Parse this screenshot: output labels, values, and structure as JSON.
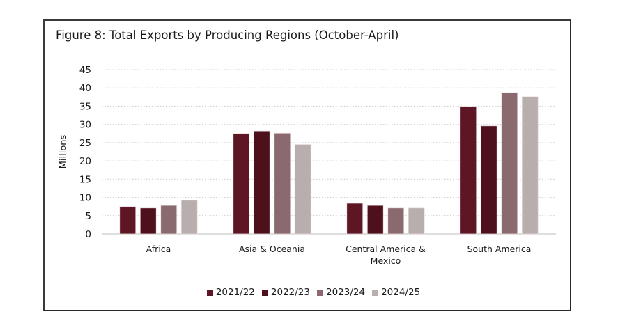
{
  "chart_data": {
    "type": "bar",
    "title": "Figure 8: Total Exports by Producing Regions (October-April)",
    "xlabel": "",
    "ylabel": "Millions",
    "ylim": [
      0,
      45
    ],
    "yticks": [
      0,
      5,
      10,
      15,
      20,
      25,
      30,
      35,
      40,
      45
    ],
    "grid": true,
    "legend_position": "bottom",
    "categories": [
      [
        "Africa"
      ],
      [
        "Asia & Oceania"
      ],
      [
        "Central America &",
        "Mexico"
      ],
      [
        "South America"
      ]
    ],
    "series": [
      {
        "name": "2021/22",
        "color": "#5e1524",
        "values": [
          7.5,
          27.5,
          8.4,
          34.9
        ]
      },
      {
        "name": "2022/23",
        "color": "#4e111c",
        "values": [
          7.1,
          28.2,
          7.8,
          29.6
        ]
      },
      {
        "name": "2023/24",
        "color": "#8a6a6e",
        "values": [
          7.8,
          27.6,
          7.1,
          38.7
        ]
      },
      {
        "name": "2024/25",
        "color": "#b8aeae",
        "values": [
          9.2,
          24.5,
          7.1,
          37.6
        ]
      }
    ]
  }
}
